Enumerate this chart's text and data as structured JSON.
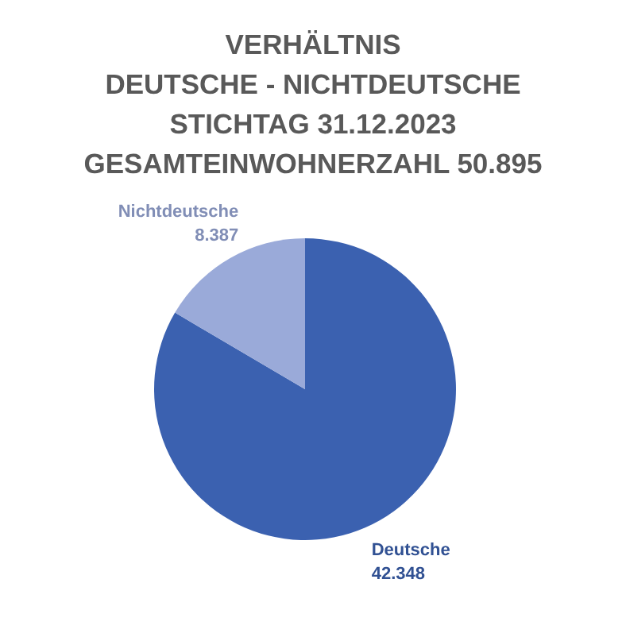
{
  "chart_data": {
    "type": "pie",
    "title": "VERHÄLTNIS\nDEUTSCHE - NICHTDEUTSCHE\nSTICHTAG 31.12.2023\nGESAMTEINWOHNERZAHL 50.895",
    "categories": [
      "Deutsche",
      "Nichtdeutsche"
    ],
    "values": [
      42348,
      8387
    ],
    "value_labels": [
      "42.348",
      "8.387"
    ],
    "colors": [
      "#3b61b0",
      "#9aaad9"
    ]
  }
}
